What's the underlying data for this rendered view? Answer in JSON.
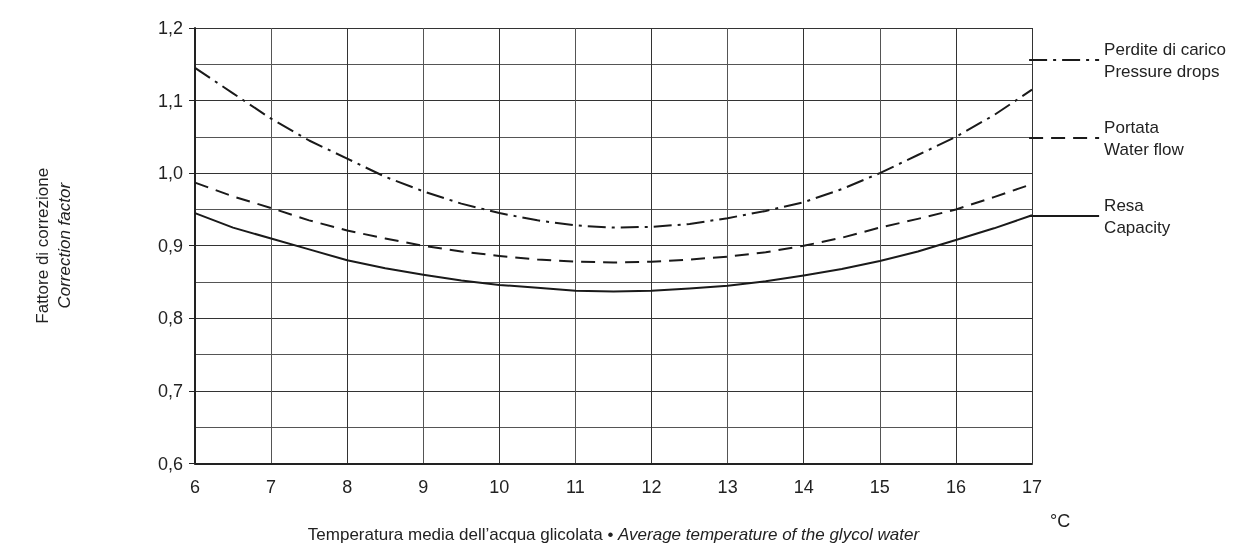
{
  "chart_data": {
    "type": "line",
    "xlabel": "Temperatura media dell’acqua glicolata • Average temperature of the glycol water",
    "ylabel": "Fattore di correzione\nCorrection factor",
    "annotations": [
      "°C"
    ],
    "x": [
      6,
      6.5,
      7,
      7.5,
      8,
      8.5,
      9,
      9.5,
      10,
      10.5,
      11,
      11.5,
      12,
      12.5,
      13,
      13.5,
      14,
      14.5,
      15,
      15.5,
      16,
      16.5,
      17
    ],
    "series": [
      {
        "name": "Perdite di carico\nPressure drops",
        "color": "#1a1a1a",
        "line_style": "dashdot",
        "values": [
          1.145,
          1.11,
          1.075,
          1.045,
          1.02,
          0.995,
          0.975,
          0.958,
          0.945,
          0.935,
          0.928,
          0.925,
          0.926,
          0.93,
          0.938,
          0.948,
          0.96,
          0.978,
          1.0,
          1.025,
          1.05,
          1.08,
          1.115
        ]
      },
      {
        "name": "Portata\nWater flow",
        "color": "#1a1a1a",
        "line_style": "dashed",
        "values": [
          0.987,
          0.968,
          0.952,
          0.935,
          0.921,
          0.91,
          0.9,
          0.892,
          0.886,
          0.881,
          0.878,
          0.877,
          0.878,
          0.881,
          0.885,
          0.891,
          0.9,
          0.911,
          0.925,
          0.937,
          0.95,
          0.967,
          0.985
        ]
      },
      {
        "name": "Resa\nCapacity",
        "color": "#1a1a1a",
        "line_style": "solid",
        "values": [
          0.945,
          0.925,
          0.91,
          0.895,
          0.88,
          0.869,
          0.86,
          0.852,
          0.846,
          0.842,
          0.838,
          0.837,
          0.838,
          0.841,
          0.845,
          0.851,
          0.859,
          0.868,
          0.879,
          0.892,
          0.908,
          0.924,
          0.942
        ]
      }
    ],
    "xlim": [
      6,
      17
    ],
    "xticks": [
      6,
      7,
      8,
      9,
      10,
      11,
      12,
      13,
      14,
      15,
      16,
      17
    ],
    "ylim": [
      0.6,
      1.2
    ],
    "yticks": [
      {
        "value": 0.6,
        "label": "0,6"
      },
      {
        "value": 0.7,
        "label": "0,7"
      },
      {
        "value": 0.8,
        "label": "0,8"
      },
      {
        "value": 0.9,
        "label": "0,9"
      },
      {
        "value": 1.0,
        "label": "1,0"
      },
      {
        "value": 1.1,
        "label": "1,1"
      },
      {
        "value": 1.2,
        "label": "1,2"
      }
    ],
    "grid": true,
    "legend": "right",
    "marker": "none"
  }
}
